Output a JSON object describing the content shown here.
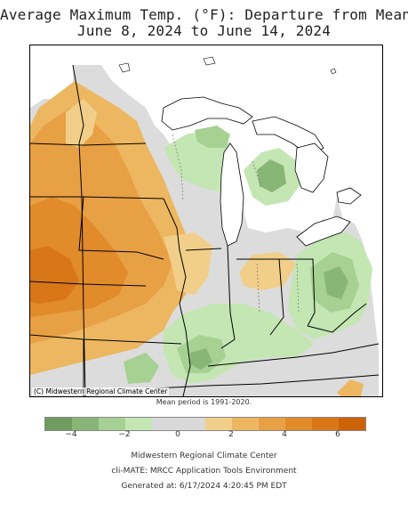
{
  "title": {
    "line1": "Average Maximum Temp. (°F): Departure from Mean",
    "line2": "June 8, 2024 to June 14, 2024"
  },
  "map": {
    "copyright": "(C) Midwestern Regional Climate Center",
    "mean_period": "Mean period is 1991-2020."
  },
  "legend": {
    "colors": [
      "#6f9d5f",
      "#88b677",
      "#a6d192",
      "#c3e6b3",
      "#d9d9d9",
      "#d9d9d9",
      "#f1cf8a",
      "#ecb760",
      "#e8a044",
      "#e18b2a",
      "#d97718",
      "#cc6308"
    ],
    "ticks": [
      {
        "label": "−4",
        "pos": 0.0833
      },
      {
        "label": "−2",
        "pos": 0.25
      },
      {
        "label": "0",
        "pos": 0.4167
      },
      {
        "label": "2",
        "pos": 0.5833
      },
      {
        "label": "4",
        "pos": 0.75
      },
      {
        "label": "6",
        "pos": 0.9167
      }
    ]
  },
  "footer": {
    "line1": "Midwestern Regional Climate Center",
    "line2": "cli-MATE: MRCC Application Tools Environment",
    "line3": "Generated at: 6/17/2024 4:20:45 PM EDT"
  }
}
